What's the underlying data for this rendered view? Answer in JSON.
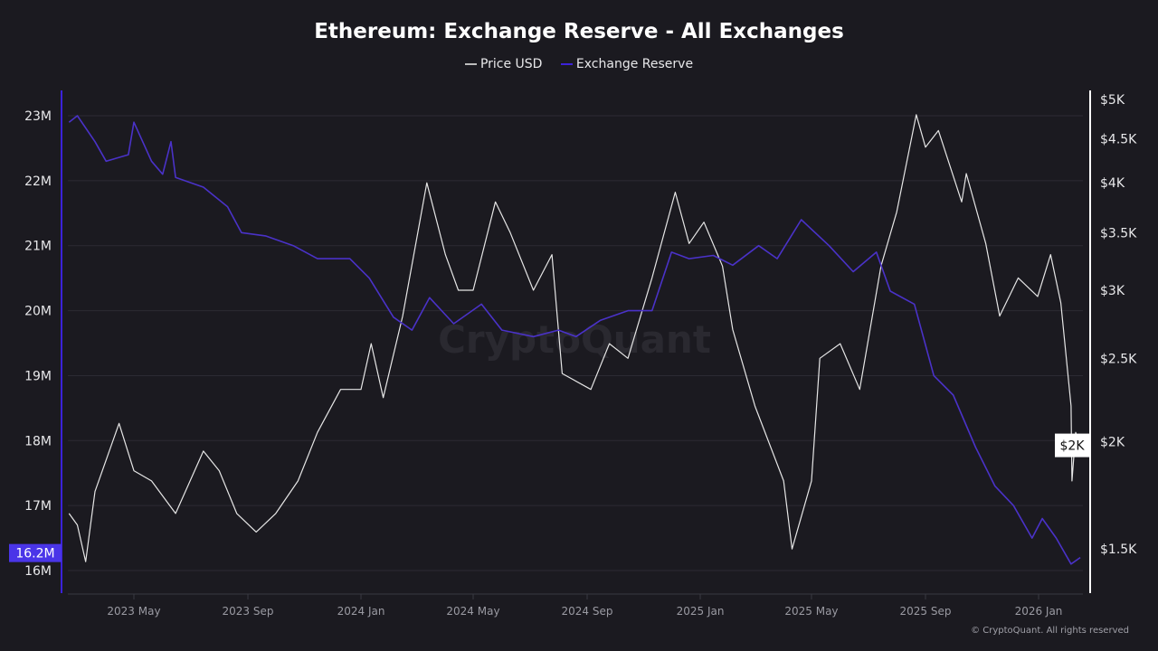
{
  "chart_data": {
    "type": "line",
    "title": "Ethereum: Exchange Reserve - All Exchanges",
    "watermark": "CryptoQuant",
    "copyright": "© CryptoQuant. All rights reserved",
    "legend_placement": "top-center",
    "grid": true,
    "x_ticks": [
      "2023 May",
      "2023 Sep",
      "2024 Jan",
      "2024 May",
      "2024 Sep",
      "2025 Jan",
      "2025 May",
      "2025 Sep",
      "2026 Jan"
    ],
    "x_tick_dates": [
      "2023-05-01",
      "2023-09-01",
      "2024-01-01",
      "2024-05-01",
      "2024-09-01",
      "2025-01-01",
      "2025-05-01",
      "2025-09-01",
      "2026-01-01"
    ],
    "left_axis": {
      "scale": "linear",
      "ylim": [
        16,
        23
      ],
      "unit": "M",
      "ticks": [
        "23M",
        "22M",
        "21M",
        "20M",
        "19M",
        "18M",
        "17M",
        "16M"
      ],
      "tick_values": [
        23,
        22,
        21,
        20,
        19,
        18,
        17,
        16
      ],
      "current_label": "16.2M",
      "current_value": 16.2
    },
    "right_axis": {
      "scale": "log",
      "ylim": [
        1400,
        5000
      ],
      "ticks": [
        "$5K",
        "$4.5K",
        "$4K",
        "$3.5K",
        "$3K",
        "$2.5K",
        "$2K",
        "$1.5K"
      ],
      "tick_values": [
        5000,
        4500,
        4000,
        3500,
        3000,
        2500,
        2000,
        1500
      ],
      "current_label": "$2K",
      "current_value": 1980
    },
    "series": [
      {
        "name": "Price USD",
        "axis": "right",
        "color": "#e6e6e6",
        "x": [
          "2023-02-20",
          "2023-03-01",
          "2023-03-10",
          "2023-03-20",
          "2023-04-15",
          "2023-05-01",
          "2023-05-20",
          "2023-06-15",
          "2023-07-15",
          "2023-08-01",
          "2023-08-20",
          "2023-09-10",
          "2023-10-01",
          "2023-10-25",
          "2023-11-15",
          "2023-12-10",
          "2024-01-01",
          "2024-01-12",
          "2024-01-25",
          "2024-02-15",
          "2024-03-12",
          "2024-04-01",
          "2024-04-15",
          "2024-05-01",
          "2024-05-25",
          "2024-06-10",
          "2024-07-05",
          "2024-07-25",
          "2024-08-05",
          "2024-09-05",
          "2024-09-25",
          "2024-10-15",
          "2024-11-10",
          "2024-12-05",
          "2024-12-20",
          "2025-01-05",
          "2025-01-25",
          "2025-02-05",
          "2025-03-01",
          "2025-04-01",
          "2025-04-10",
          "2025-05-01",
          "2025-05-10",
          "2025-06-01",
          "2025-06-22",
          "2025-07-15",
          "2025-08-01",
          "2025-08-22",
          "2025-09-01",
          "2025-09-15",
          "2025-10-10",
          "2025-10-15",
          "2025-11-05",
          "2025-11-20",
          "2025-12-10",
          "2025-12-31",
          "2026-01-14",
          "2026-01-25",
          "2026-02-05",
          "2026-02-06",
          "2026-02-10",
          "2026-02-15"
        ],
        "values": [
          1650,
          1600,
          1450,
          1750,
          2100,
          1850,
          1800,
          1650,
          1950,
          1850,
          1650,
          1570,
          1650,
          1800,
          2050,
          2300,
          2300,
          2600,
          2250,
          2800,
          4000,
          3300,
          3000,
          3000,
          3800,
          3500,
          3000,
          3300,
          2400,
          2300,
          2600,
          2500,
          3100,
          3900,
          3400,
          3600,
          3200,
          2700,
          2200,
          1800,
          1500,
          1800,
          2500,
          2600,
          2300,
          3200,
          3700,
          4800,
          4400,
          4600,
          3800,
          4100,
          3400,
          2800,
          3100,
          2950,
          3300,
          2900,
          2200,
          1800,
          2050,
          1980
        ]
      },
      {
        "name": "Exchange Reserve",
        "axis": "left",
        "color": "#4a32c8",
        "x": [
          "2023-02-20",
          "2023-03-01",
          "2023-03-20",
          "2023-04-01",
          "2023-04-25",
          "2023-05-01",
          "2023-05-20",
          "2023-06-01",
          "2023-06-10",
          "2023-06-15",
          "2023-07-15",
          "2023-08-10",
          "2023-08-25",
          "2023-09-20",
          "2023-10-20",
          "2023-11-15",
          "2023-12-20",
          "2024-01-10",
          "2024-02-05",
          "2024-02-25",
          "2024-03-15",
          "2024-04-10",
          "2024-05-10",
          "2024-06-01",
          "2024-07-05",
          "2024-08-01",
          "2024-08-20",
          "2024-09-15",
          "2024-10-15",
          "2024-11-10",
          "2024-12-01",
          "2024-12-20",
          "2025-01-15",
          "2025-02-05",
          "2025-03-05",
          "2025-03-25",
          "2025-04-20",
          "2025-05-20",
          "2025-06-15",
          "2025-07-10",
          "2025-07-25",
          "2025-08-20",
          "2025-09-10",
          "2025-10-01",
          "2025-10-25",
          "2025-11-15",
          "2025-12-05",
          "2025-12-25",
          "2026-01-05",
          "2026-01-20",
          "2026-02-05",
          "2026-02-15"
        ],
        "values": [
          22.9,
          23.0,
          22.6,
          22.3,
          22.4,
          22.9,
          22.3,
          22.1,
          22.6,
          22.05,
          21.9,
          21.6,
          21.2,
          21.15,
          21.0,
          20.8,
          20.8,
          20.5,
          19.9,
          19.7,
          20.2,
          19.8,
          20.1,
          19.7,
          19.6,
          19.7,
          19.6,
          19.85,
          20.0,
          20.0,
          20.9,
          20.8,
          20.85,
          20.7,
          21.0,
          20.8,
          21.4,
          21.0,
          20.6,
          20.9,
          20.3,
          20.1,
          19.0,
          18.7,
          17.9,
          17.3,
          17.0,
          16.5,
          16.8,
          16.5,
          16.1,
          16.2
        ]
      }
    ]
  }
}
